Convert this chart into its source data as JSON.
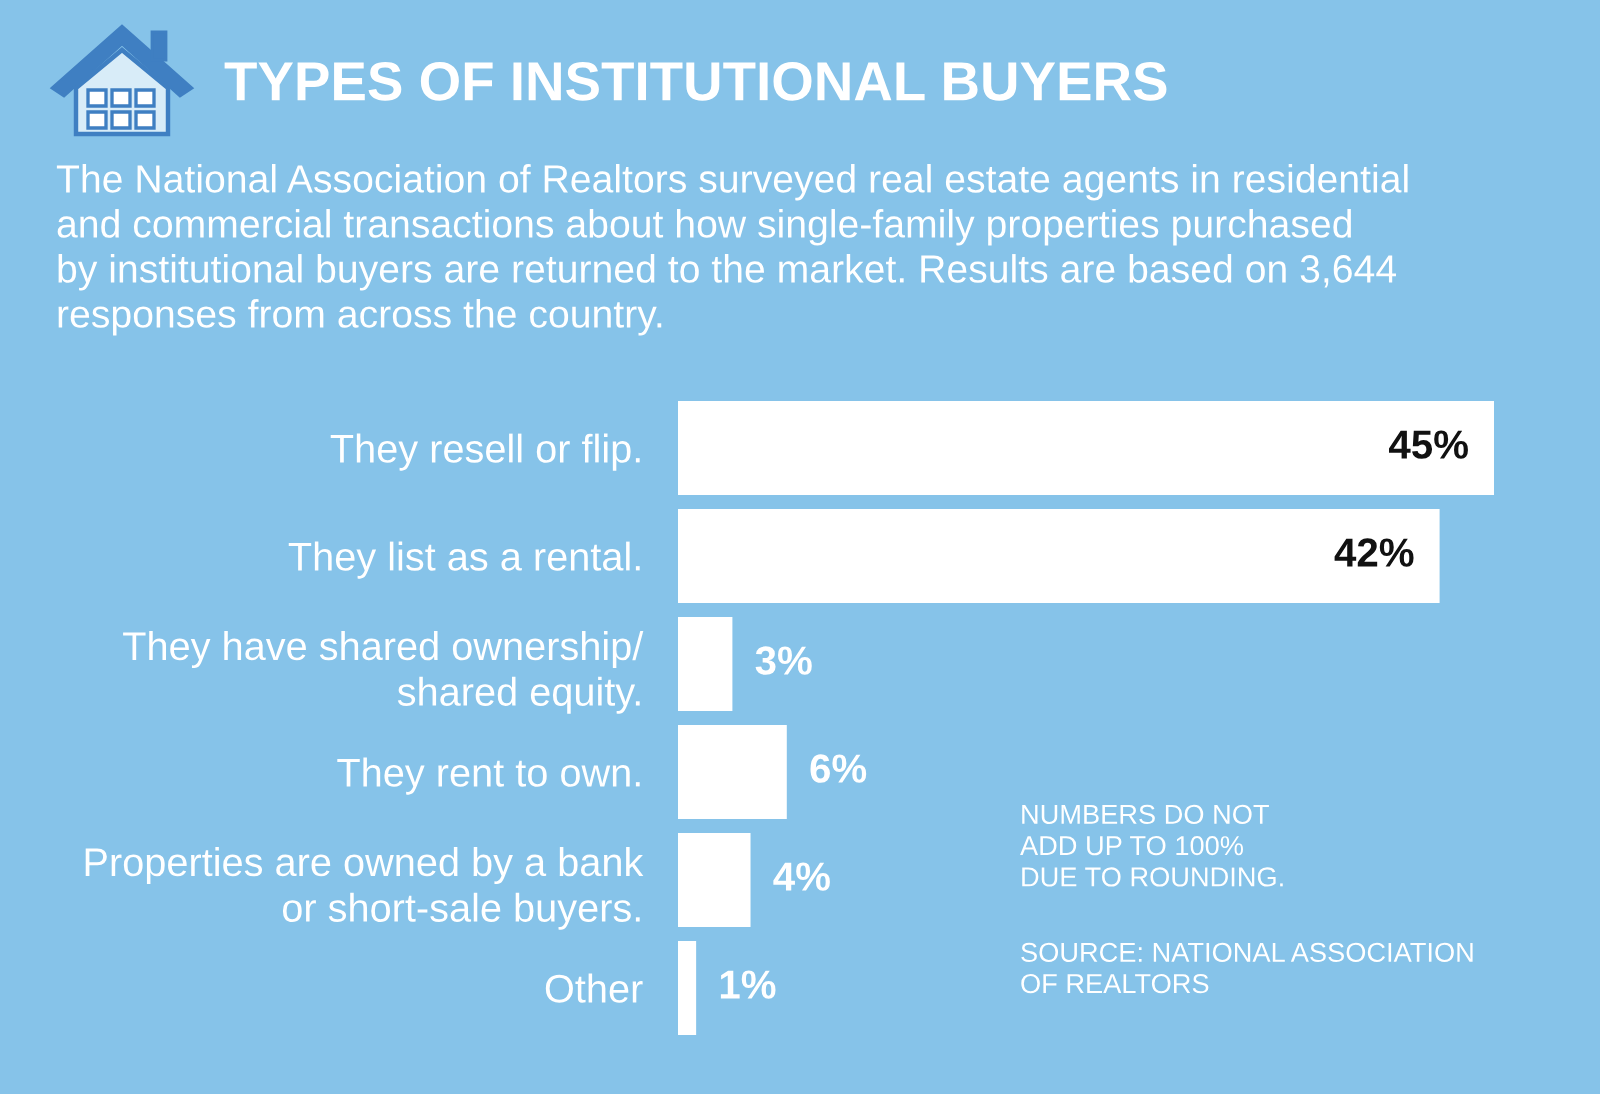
{
  "chart_data": {
    "type": "bar",
    "orientation": "horizontal",
    "title": "TYPES OF INSTITUTIONAL BUYERS",
    "subtitle": "The National Association of Realtors surveyed real estate agents in residential\nand commercial transactions about how single-family properties purchased\nby institutional buyers are returned to the market. Results are based on 3,644\nresponses from across the country.",
    "categories": [
      "They resell or flip.",
      "They list as a rental.",
      "They have shared ownership/\nshared equity.",
      "They rent to own.",
      "Properties are owned by a bank\nor short-sale buyers.",
      "Other"
    ],
    "values": [
      45,
      42,
      3,
      6,
      4,
      1
    ],
    "color": "#ffffff",
    "value_labels": [
      "45%",
      "42%",
      "3%",
      "6%",
      "4%",
      "1%"
    ],
    "tick_labels": "y",
    "annotations": [
      "NUMBERS DO NOT\nADD UP TO 100%\nDUE TO ROUNDING.",
      "SOURCE: NATIONAL ASSOCIATION\nOF REALTORS"
    ]
  }
}
